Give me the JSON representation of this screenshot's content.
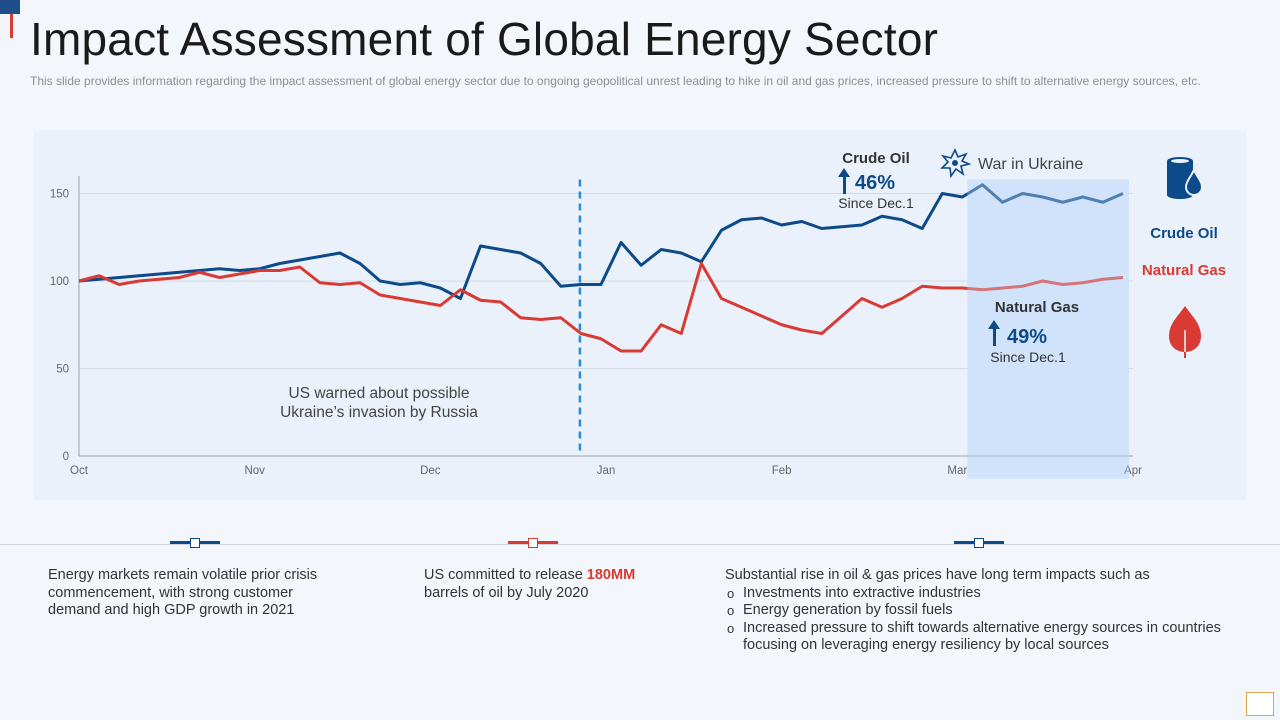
{
  "header": {
    "title": "Impact Assessment of Global Energy Sector",
    "subtitle": "This slide provides information regarding the impact assessment of global energy sector due to ongoing geopolitical unrest leading to hike in oil and gas prices, increased pressure to shift to alternative energy sources, etc."
  },
  "colors": {
    "crude_oil": "#0d4a8a",
    "natural_gas": "#d93a33",
    "shade": "#cde2fa",
    "accent_blue": "#2a8bd6"
  },
  "chart_data": {
    "type": "line",
    "x_tick_labels": [
      "Oct",
      "Nov",
      "Dec",
      "Jan",
      "Feb",
      "Mar",
      "Apr"
    ],
    "y_ticks": [
      0,
      50,
      100,
      150
    ],
    "ylim": [
      0,
      160
    ],
    "x_range": [
      0,
      105
    ],
    "grid": "horizontal",
    "legend": "right",
    "series": [
      {
        "name": "Crude Oil",
        "x": [
          0,
          2,
          4,
          6,
          8,
          10,
          12,
          14,
          16,
          18,
          20,
          22,
          24,
          26,
          28,
          30,
          32,
          34,
          36,
          38,
          40,
          42,
          44,
          46,
          48,
          50,
          52,
          54,
          56,
          58,
          60,
          62,
          64,
          66,
          68,
          70,
          72,
          74,
          76,
          78,
          80,
          82,
          84,
          86,
          88,
          90,
          92,
          94,
          96,
          98,
          100,
          102,
          104
        ],
        "y": [
          100,
          101,
          102,
          103,
          104,
          105,
          106,
          107,
          106,
          107,
          110,
          112,
          114,
          116,
          110,
          100,
          98,
          99,
          96,
          90,
          120,
          118,
          116,
          110,
          97,
          98,
          98,
          122,
          109,
          118,
          116,
          111,
          129,
          135,
          136,
          132,
          134,
          130,
          131,
          132,
          137,
          135,
          130,
          150,
          148,
          155,
          145,
          150,
          148,
          145,
          148,
          145,
          150
        ]
      },
      {
        "name": "Natural Gas",
        "x": [
          0,
          2,
          4,
          6,
          8,
          10,
          12,
          14,
          16,
          18,
          20,
          22,
          24,
          26,
          28,
          30,
          32,
          34,
          36,
          38,
          40,
          42,
          44,
          46,
          48,
          50,
          52,
          54,
          56,
          58,
          60,
          62,
          64,
          66,
          68,
          70,
          72,
          74,
          76,
          78,
          80,
          82,
          84,
          86,
          88,
          90,
          92,
          94,
          96,
          98,
          100,
          102,
          104
        ],
        "y": [
          100,
          103,
          98,
          100,
          101,
          102,
          105,
          102,
          104,
          106,
          106,
          108,
          99,
          98,
          99,
          92,
          90,
          88,
          86,
          95,
          89,
          88,
          79,
          78,
          79,
          70,
          67,
          60,
          60,
          75,
          70,
          110,
          90,
          85,
          80,
          75,
          72,
          70,
          80,
          90,
          85,
          90,
          97,
          96,
          96,
          95,
          96,
          97,
          100,
          98,
          99,
          101,
          102
        ]
      }
    ],
    "legend_entries": [
      "Crude Oil",
      "Natural Gas"
    ],
    "annotations": {
      "crude_oil": {
        "label": "Crude Oil",
        "pct": "46%",
        "since": "Since Dec.1"
      },
      "natural_gas": {
        "label": "Natural Gas",
        "pct": "49%",
        "since": "Since Dec.1"
      },
      "war": "War in Ukraine",
      "us_warned_1": "US warned about possible",
      "us_warned_2": "Ukraine’s invasion by Russia"
    }
  },
  "notes": {
    "left": "Energy markets remain volatile prior crisis commencement, with strong customer demand and high GDP growth in 2021",
    "middle_pre": "US committed to release ",
    "middle_bold": "180MM",
    "middle_post": "barrels of oil by July 2020",
    "right_intro": "Substantial rise in oil & gas prices have long term impacts such as",
    "right_bullets": [
      "Investments into extractive industries",
      "Energy generation  by fossil fuels",
      "Increased pressure to shift towards alternative energy sources in countries focusing on leveraging energy resiliency by local sources"
    ]
  },
  "icons": [
    "oil-barrel-icon",
    "flame-icon",
    "explosion-icon",
    "up-arrow-icon"
  ]
}
